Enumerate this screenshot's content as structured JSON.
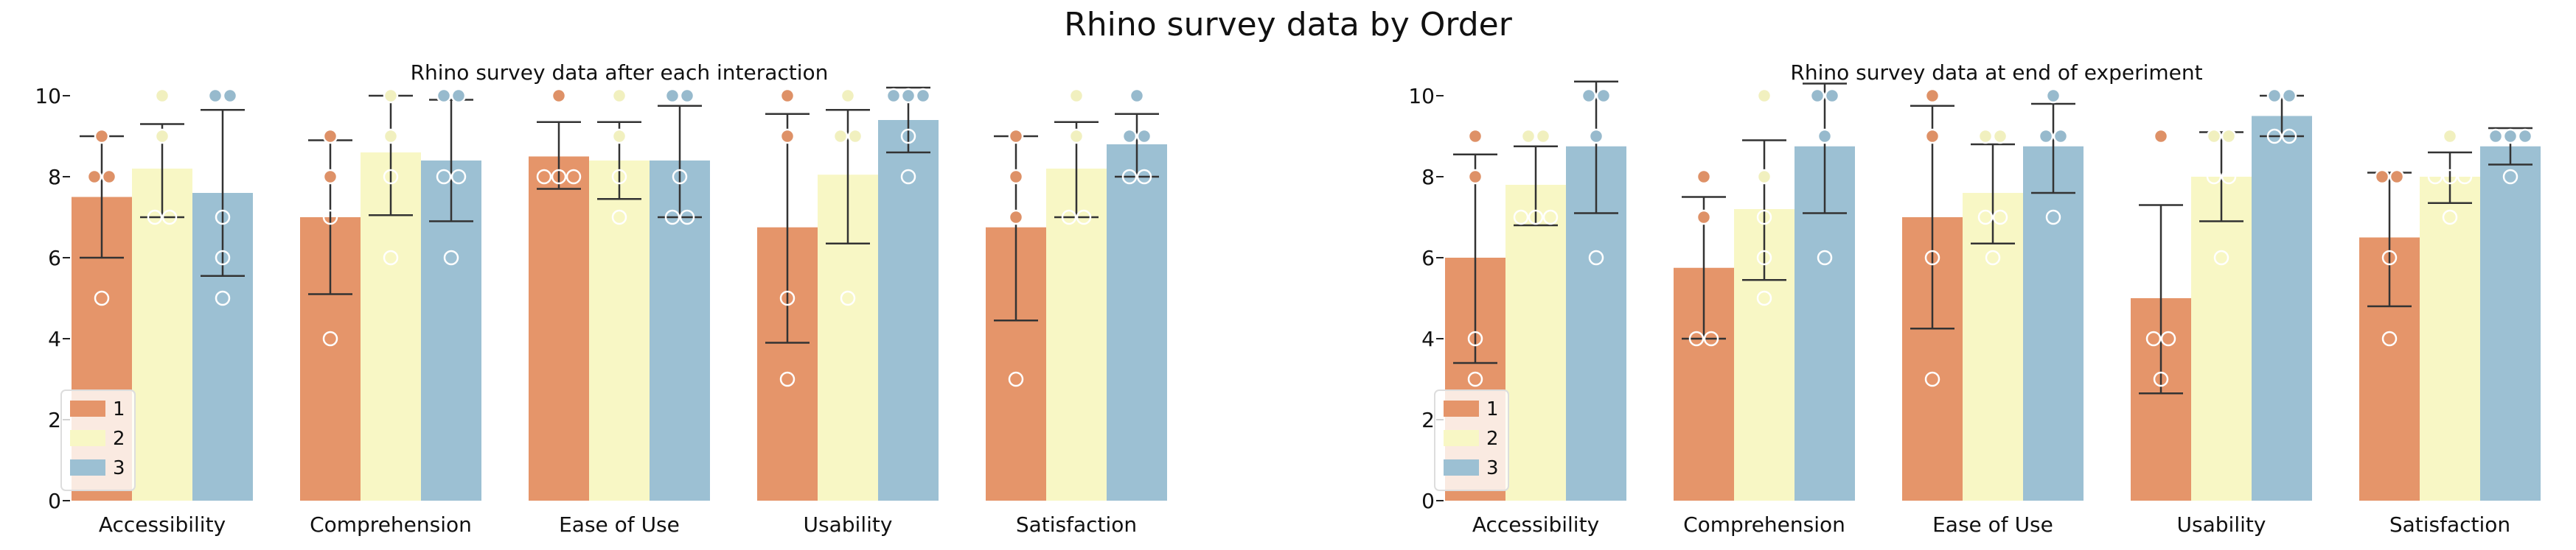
{
  "figure": {
    "suptitle": "Rhino survey data by Order"
  },
  "colors": {
    "1": "#e5956a",
    "2": "#f8f7c5",
    "3": "#9cc0d3",
    "error_bar": "#333333"
  },
  "chart_data": [
    {
      "type": "bar",
      "title": "Rhino survey data after each interaction",
      "xlabel": "",
      "ylabel": "",
      "ylim": [
        0,
        10.5
      ],
      "yticks": [
        0,
        2,
        4,
        6,
        8,
        10
      ],
      "categories": [
        "Accessibility",
        "Comprehension",
        "Ease of Use",
        "Usability",
        "Satisfaction"
      ],
      "legend": {
        "placement": "lower-left",
        "entries": [
          "1",
          "2",
          "3"
        ]
      },
      "series": [
        {
          "name": "1",
          "values": [
            7.5,
            7.0,
            8.5,
            6.75,
            6.75
          ],
          "ci_low": [
            6.0,
            5.1,
            7.7,
            3.9,
            4.45
          ],
          "ci_high": [
            9.0,
            8.9,
            9.35,
            9.55,
            9.0
          ],
          "points": [
            [
              8,
              8,
              9,
              5
            ],
            [
              9,
              8,
              7,
              4
            ],
            [
              8,
              8,
              8,
              10
            ],
            [
              10,
              9,
              5,
              3
            ],
            [
              9,
              8,
              7,
              3
            ]
          ]
        },
        {
          "name": "2",
          "values": [
            8.2,
            8.6,
            8.4,
            8.05,
            8.2
          ],
          "ci_low": [
            7.0,
            7.05,
            7.45,
            6.35,
            7.0
          ],
          "ci_high": [
            9.3,
            10.0,
            9.35,
            9.65,
            9.35
          ],
          "points": [
            [
              10,
              7,
              7,
              9
            ],
            [
              10,
              9,
              8,
              6
            ],
            [
              10,
              8,
              7,
              9
            ],
            [
              9,
              9,
              5,
              10
            ],
            [
              10,
              7,
              7,
              9
            ]
          ]
        },
        {
          "name": "3",
          "values": [
            7.6,
            8.4,
            8.4,
            9.4,
            8.8
          ],
          "ci_low": [
            5.55,
            6.9,
            7.0,
            8.6,
            8.0
          ],
          "ci_high": [
            9.65,
            9.9,
            9.75,
            10.2,
            9.55
          ],
          "points": [
            [
              10,
              10,
              7,
              6,
              5
            ],
            [
              10,
              10,
              8,
              8,
              6
            ],
            [
              10,
              10,
              8,
              7,
              7
            ],
            [
              10,
              10,
              10,
              9,
              8
            ],
            [
              10,
              9,
              8,
              8,
              9
            ]
          ]
        }
      ]
    },
    {
      "type": "bar",
      "title": "Rhino survey data at end of experiment",
      "xlabel": "",
      "ylabel": "",
      "ylim": [
        0,
        10.5
      ],
      "yticks": [
        0,
        2,
        4,
        6,
        8,
        10
      ],
      "categories": [
        "Accessibility",
        "Comprehension",
        "Ease of Use",
        "Usability",
        "Satisfaction"
      ],
      "legend": {
        "placement": "lower-left",
        "entries": [
          "1",
          "2",
          "3"
        ]
      },
      "series": [
        {
          "name": "1",
          "values": [
            6.0,
            5.75,
            7.0,
            5.0,
            6.5
          ],
          "ci_low": [
            3.4,
            4.0,
            4.25,
            2.65,
            4.8
          ],
          "ci_high": [
            8.55,
            7.5,
            9.75,
            7.3,
            8.1
          ],
          "points": [
            [
              9,
              8,
              4,
              3
            ],
            [
              8,
              7,
              4,
              4
            ],
            [
              10,
              9,
              6,
              3
            ],
            [
              9,
              4,
              4,
              3
            ],
            [
              8,
              8,
              6,
              4
            ]
          ]
        },
        {
          "name": "2",
          "values": [
            7.8,
            7.2,
            7.6,
            8.0,
            8.0
          ],
          "ci_low": [
            6.8,
            5.45,
            6.35,
            6.9,
            7.35
          ],
          "ci_high": [
            8.75,
            8.9,
            8.8,
            9.1,
            8.6
          ],
          "points": [
            [
              9,
              9,
              7,
              7,
              7
            ],
            [
              10,
              8,
              7,
              6,
              5
            ],
            [
              9,
              9,
              7,
              6,
              7
            ],
            [
              9,
              9,
              8,
              6,
              8
            ],
            [
              9,
              8,
              8,
              7,
              8
            ]
          ]
        },
        {
          "name": "3",
          "values": [
            8.75,
            8.75,
            8.75,
            9.5,
            8.75
          ],
          "ci_low": [
            7.1,
            7.1,
            7.6,
            9.0,
            8.3
          ],
          "ci_high": [
            10.35,
            10.3,
            9.8,
            10.0,
            9.2
          ],
          "points": [
            [
              10,
              10,
              9,
              6
            ],
            [
              10,
              10,
              9,
              6
            ],
            [
              10,
              9,
              9,
              7
            ],
            [
              10,
              10,
              9,
              9
            ],
            [
              9,
              9,
              9,
              8
            ]
          ]
        }
      ]
    }
  ]
}
